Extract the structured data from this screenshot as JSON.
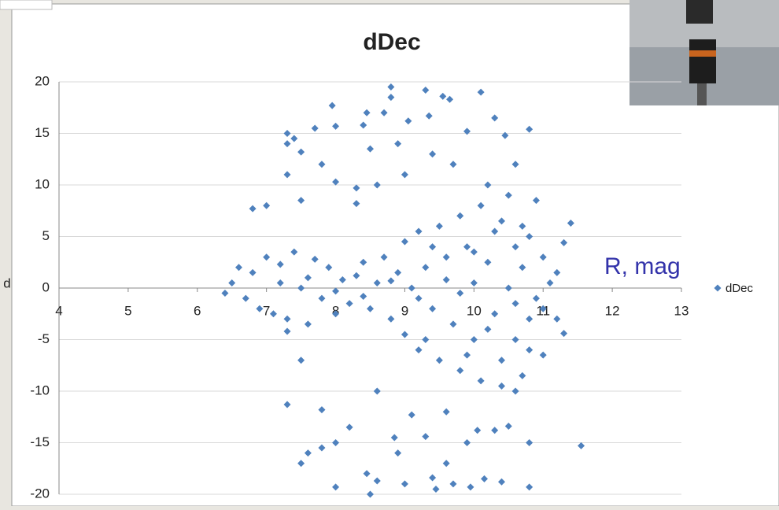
{
  "chart_data": {
    "type": "scatter",
    "title": "dDec",
    "ylabel": "d",
    "annotations": [
      "R, mag"
    ],
    "xlim": [
      4,
      13
    ],
    "xticks": [
      4,
      5,
      6,
      7,
      8,
      9,
      10,
      11,
      12,
      13
    ],
    "ylim": [
      -20,
      20
    ],
    "yticks": [
      -20,
      -15,
      -10,
      -5,
      0,
      5,
      10,
      15,
      20
    ],
    "grid": true,
    "legend": "right",
    "x": [
      6.8,
      7.0,
      7.3,
      7.3,
      7.4,
      7.5,
      7.3,
      7.5,
      7.7,
      7.8,
      7.95,
      8.0,
      8.0,
      8.3,
      8.4,
      8.45,
      8.5,
      8.3,
      8.6,
      8.8,
      8.8,
      8.9,
      8.7,
      9.05,
      9.3,
      9.35,
      9.55,
      9.65,
      9.4,
      9.7,
      9.9,
      10.1,
      10.3,
      10.45,
      10.6,
      10.8,
      10.2,
      9.0,
      11.4,
      11.3,
      7.3,
      7.5,
      7.6,
      7.8,
      7.8,
      8.0,
      8.0,
      8.2,
      8.45,
      8.5,
      8.6,
      8.85,
      8.9,
      9.0,
      9.1,
      9.3,
      9.4,
      9.45,
      9.6,
      9.7,
      9.9,
      9.95,
      10.05,
      10.15,
      10.3,
      10.4,
      10.5,
      10.8,
      10.8,
      11.55,
      9.6,
      10.6,
      8.6,
      7.5,
      7.3,
      11.2,
      11.3,
      11.0,
      6.4,
      6.5,
      6.6,
      6.7,
      6.8,
      6.9,
      7.0,
      7.1,
      7.2,
      7.3,
      7.4,
      7.5,
      7.6,
      7.7,
      7.8,
      7.9,
      8.0,
      8.1,
      8.2,
      8.3,
      8.4,
      8.5,
      8.6,
      8.7,
      8.8,
      8.9,
      9.0,
      9.0,
      9.1,
      9.2,
      9.2,
      9.3,
      9.4,
      9.5,
      9.5,
      9.6,
      9.7,
      9.8,
      9.8,
      9.9,
      10.0,
      10.0,
      10.1,
      10.1,
      10.2,
      10.3,
      10.4,
      10.4,
      10.5,
      10.5,
      10.6,
      10.6,
      10.7,
      10.7,
      10.8,
      10.8,
      10.9,
      10.9,
      11.0,
      11.0,
      7.2,
      7.6,
      8.0,
      8.4,
      8.8,
      9.2,
      9.6,
      10.0,
      10.2,
      10.6,
      9.4,
      9.8,
      10.3,
      10.7,
      10.4,
      9.9,
      9.3,
      10.8,
      11.1,
      11.2
    ],
    "series": [
      {
        "name": "dDec",
        "color": "#4f81bd",
        "values": [
          7.7,
          8.0,
          15,
          14,
          14.5,
          13.2,
          11,
          8.5,
          15.5,
          12,
          17.7,
          15.7,
          10.3,
          9.7,
          15.8,
          17,
          13.5,
          8.2,
          10,
          19.5,
          18.5,
          14,
          17,
          16.2,
          19.2,
          16.7,
          18.6,
          18.3,
          13,
          12,
          15.2,
          19,
          16.5,
          14.8,
          12,
          15.4,
          10,
          11,
          6.3,
          4.4,
          -11.3,
          -17,
          -16,
          -11.8,
          -15.5,
          -19.3,
          -15,
          -13.5,
          -18,
          -20,
          -18.7,
          -14.5,
          -16,
          -19,
          -12.3,
          -14.4,
          -18.4,
          -19.5,
          -17,
          -19,
          -15,
          -19.3,
          -13.8,
          -18.5,
          -13.8,
          -18.8,
          -13.4,
          -15,
          -19.3,
          -15.3,
          -12,
          -10,
          -10,
          -7,
          -4.2,
          -3,
          -4.4,
          -6.5,
          -0.5,
          0.5,
          2,
          -1,
          1.5,
          -2,
          3,
          -2.5,
          2.3,
          -3,
          3.5,
          0,
          -3.5,
          2.8,
          -1,
          2,
          -2.5,
          0.8,
          -1.5,
          1.2,
          2.5,
          -2,
          0.5,
          3,
          -3,
          1.5,
          4.5,
          -4.5,
          0,
          5.5,
          -6,
          2,
          -2,
          6,
          -7,
          3,
          -3.5,
          7,
          -8,
          4,
          -5,
          0.5,
          8,
          -9,
          2.5,
          -2.5,
          6.5,
          -7,
          0,
          9,
          4,
          -5,
          -8.5,
          2,
          5,
          -3,
          8.5,
          -1,
          3,
          -2,
          0.5,
          1,
          -0.3,
          -0.8,
          0.7,
          -1,
          0.8,
          3.5,
          -4,
          -1.5,
          4,
          -0.5,
          5.5,
          6,
          -9.5,
          -6.5,
          -5,
          -6,
          0.5,
          1.5
        ]
      }
    ]
  }
}
